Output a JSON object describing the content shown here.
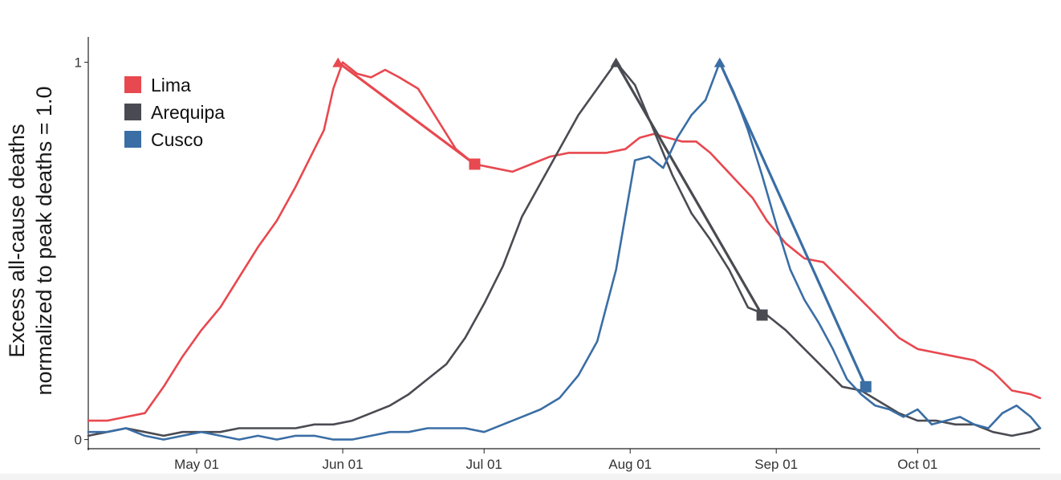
{
  "chart_data": {
    "type": "line",
    "ylabel_lines": [
      "Excess all-cause deaths",
      "normalized to peak deaths = 1.0"
    ],
    "xlabel": "",
    "x_start": "2020-04-08",
    "x_end": "2020-10-27",
    "xticks": [
      {
        "date": "2020-05-01",
        "label": "May 01"
      },
      {
        "date": "2020-06-01",
        "label": "Jun 01"
      },
      {
        "date": "2020-07-01",
        "label": "Jul 01"
      },
      {
        "date": "2020-08-01",
        "label": "Aug 01"
      },
      {
        "date": "2020-09-01",
        "label": "Sep 01"
      },
      {
        "date": "2020-10-01",
        "label": "Oct 01"
      }
    ],
    "yticks": [
      {
        "value": 0,
        "label": "0"
      },
      {
        "value": 1,
        "label": "1"
      }
    ],
    "ylim": [
      -0.02,
      1.08
    ],
    "grid": false,
    "legend": {
      "position": "top-left",
      "entries": [
        "Lima",
        "Arequipa",
        "Cusco"
      ]
    },
    "series": [
      {
        "name": "Lima",
        "color": "#e8484f",
        "points": [
          [
            "2020-04-08",
            0.05
          ],
          [
            "2020-04-12",
            0.05
          ],
          [
            "2020-04-16",
            0.06
          ],
          [
            "2020-04-20",
            0.07
          ],
          [
            "2020-04-24",
            0.14
          ],
          [
            "2020-04-28",
            0.22
          ],
          [
            "2020-05-02",
            0.29
          ],
          [
            "2020-05-06",
            0.35
          ],
          [
            "2020-05-10",
            0.43
          ],
          [
            "2020-05-14",
            0.51
          ],
          [
            "2020-05-18",
            0.58
          ],
          [
            "2020-05-22",
            0.67
          ],
          [
            "2020-05-26",
            0.77
          ],
          [
            "2020-05-28",
            0.82
          ],
          [
            "2020-05-30",
            0.93
          ],
          [
            "2020-06-01",
            1.0
          ],
          [
            "2020-06-04",
            0.97
          ],
          [
            "2020-06-07",
            0.96
          ],
          [
            "2020-06-10",
            0.98
          ],
          [
            "2020-06-13",
            0.96
          ],
          [
            "2020-06-17",
            0.93
          ],
          [
            "2020-06-21",
            0.85
          ],
          [
            "2020-06-25",
            0.77
          ],
          [
            "2020-06-29",
            0.73
          ],
          [
            "2020-07-03",
            0.72
          ],
          [
            "2020-07-07",
            0.71
          ],
          [
            "2020-07-11",
            0.73
          ],
          [
            "2020-07-15",
            0.75
          ],
          [
            "2020-07-19",
            0.76
          ],
          [
            "2020-07-23",
            0.76
          ],
          [
            "2020-07-27",
            0.76
          ],
          [
            "2020-07-31",
            0.77
          ],
          [
            "2020-08-03",
            0.8
          ],
          [
            "2020-08-06",
            0.81
          ],
          [
            "2020-08-09",
            0.8
          ],
          [
            "2020-08-12",
            0.79
          ],
          [
            "2020-08-15",
            0.79
          ],
          [
            "2020-08-18",
            0.76
          ],
          [
            "2020-08-21",
            0.72
          ],
          [
            "2020-08-24",
            0.68
          ],
          [
            "2020-08-27",
            0.64
          ],
          [
            "2020-08-30",
            0.58
          ],
          [
            "2020-09-03",
            0.52
          ],
          [
            "2020-09-07",
            0.48
          ],
          [
            "2020-09-11",
            0.47
          ],
          [
            "2020-09-15",
            0.42
          ],
          [
            "2020-09-19",
            0.37
          ],
          [
            "2020-09-23",
            0.32
          ],
          [
            "2020-09-27",
            0.27
          ],
          [
            "2020-10-01",
            0.24
          ],
          [
            "2020-10-05",
            0.23
          ],
          [
            "2020-10-09",
            0.22
          ],
          [
            "2020-10-13",
            0.21
          ],
          [
            "2020-10-17",
            0.18
          ],
          [
            "2020-10-21",
            0.13
          ],
          [
            "2020-10-25",
            0.12
          ],
          [
            "2020-10-27",
            0.11
          ]
        ],
        "fit": [
          [
            "2020-05-31",
            1.0
          ],
          [
            "2020-06-29",
            0.73
          ]
        ]
      },
      {
        "name": "Arequipa",
        "color": "#4a4b52",
        "points": [
          [
            "2020-04-08",
            0.01
          ],
          [
            "2020-04-12",
            0.02
          ],
          [
            "2020-04-16",
            0.03
          ],
          [
            "2020-04-20",
            0.02
          ],
          [
            "2020-04-24",
            0.01
          ],
          [
            "2020-04-28",
            0.02
          ],
          [
            "2020-05-02",
            0.02
          ],
          [
            "2020-05-06",
            0.02
          ],
          [
            "2020-05-10",
            0.03
          ],
          [
            "2020-05-14",
            0.03
          ],
          [
            "2020-05-18",
            0.03
          ],
          [
            "2020-05-22",
            0.03
          ],
          [
            "2020-05-26",
            0.04
          ],
          [
            "2020-05-30",
            0.04
          ],
          [
            "2020-06-03",
            0.05
          ],
          [
            "2020-06-07",
            0.07
          ],
          [
            "2020-06-11",
            0.09
          ],
          [
            "2020-06-15",
            0.12
          ],
          [
            "2020-06-19",
            0.16
          ],
          [
            "2020-06-23",
            0.2
          ],
          [
            "2020-06-27",
            0.27
          ],
          [
            "2020-07-01",
            0.36
          ],
          [
            "2020-07-05",
            0.46
          ],
          [
            "2020-07-09",
            0.59
          ],
          [
            "2020-07-13",
            0.68
          ],
          [
            "2020-07-17",
            0.77
          ],
          [
            "2020-07-21",
            0.86
          ],
          [
            "2020-07-25",
            0.93
          ],
          [
            "2020-07-29",
            1.0
          ],
          [
            "2020-08-02",
            0.94
          ],
          [
            "2020-08-06",
            0.82
          ],
          [
            "2020-08-10",
            0.7
          ],
          [
            "2020-08-14",
            0.6
          ],
          [
            "2020-08-18",
            0.53
          ],
          [
            "2020-08-22",
            0.45
          ],
          [
            "2020-08-26",
            0.35
          ],
          [
            "2020-08-30",
            0.33
          ],
          [
            "2020-09-03",
            0.29
          ],
          [
            "2020-09-07",
            0.24
          ],
          [
            "2020-09-11",
            0.19
          ],
          [
            "2020-09-15",
            0.14
          ],
          [
            "2020-09-19",
            0.13
          ],
          [
            "2020-09-23",
            0.1
          ],
          [
            "2020-09-27",
            0.07
          ],
          [
            "2020-10-01",
            0.05
          ],
          [
            "2020-10-05",
            0.05
          ],
          [
            "2020-10-09",
            0.04
          ],
          [
            "2020-10-13",
            0.04
          ],
          [
            "2020-10-17",
            0.02
          ],
          [
            "2020-10-21",
            0.01
          ],
          [
            "2020-10-25",
            0.02
          ],
          [
            "2020-10-27",
            0.03
          ]
        ],
        "fit": [
          [
            "2020-07-29",
            1.0
          ],
          [
            "2020-08-29",
            0.33
          ]
        ]
      },
      {
        "name": "Cusco",
        "color": "#3a6ea5",
        "points": [
          [
            "2020-04-08",
            0.02
          ],
          [
            "2020-04-12",
            0.02
          ],
          [
            "2020-04-16",
            0.03
          ],
          [
            "2020-04-20",
            0.01
          ],
          [
            "2020-04-24",
            0.0
          ],
          [
            "2020-04-28",
            0.01
          ],
          [
            "2020-05-02",
            0.02
          ],
          [
            "2020-05-06",
            0.01
          ],
          [
            "2020-05-10",
            0.0
          ],
          [
            "2020-05-14",
            0.01
          ],
          [
            "2020-05-18",
            0.0
          ],
          [
            "2020-05-22",
            0.01
          ],
          [
            "2020-05-26",
            0.01
          ],
          [
            "2020-05-30",
            0.0
          ],
          [
            "2020-06-03",
            0.0
          ],
          [
            "2020-06-07",
            0.01
          ],
          [
            "2020-06-11",
            0.02
          ],
          [
            "2020-06-15",
            0.02
          ],
          [
            "2020-06-19",
            0.03
          ],
          [
            "2020-06-23",
            0.03
          ],
          [
            "2020-06-27",
            0.03
          ],
          [
            "2020-07-01",
            0.02
          ],
          [
            "2020-07-05",
            0.04
          ],
          [
            "2020-07-09",
            0.06
          ],
          [
            "2020-07-13",
            0.08
          ],
          [
            "2020-07-17",
            0.11
          ],
          [
            "2020-07-21",
            0.17
          ],
          [
            "2020-07-25",
            0.26
          ],
          [
            "2020-07-29",
            0.45
          ],
          [
            "2020-08-02",
            0.74
          ],
          [
            "2020-08-05",
            0.75
          ],
          [
            "2020-08-08",
            0.72
          ],
          [
            "2020-08-11",
            0.8
          ],
          [
            "2020-08-14",
            0.86
          ],
          [
            "2020-08-17",
            0.9
          ],
          [
            "2020-08-20",
            1.0
          ],
          [
            "2020-08-23",
            0.92
          ],
          [
            "2020-08-26",
            0.82
          ],
          [
            "2020-08-29",
            0.7
          ],
          [
            "2020-09-01",
            0.57
          ],
          [
            "2020-09-04",
            0.45
          ],
          [
            "2020-09-07",
            0.37
          ],
          [
            "2020-09-10",
            0.31
          ],
          [
            "2020-09-13",
            0.24
          ],
          [
            "2020-09-16",
            0.16
          ],
          [
            "2020-09-19",
            0.12
          ],
          [
            "2020-09-22",
            0.09
          ],
          [
            "2020-09-25",
            0.08
          ],
          [
            "2020-09-28",
            0.06
          ],
          [
            "2020-10-01",
            0.08
          ],
          [
            "2020-10-04",
            0.04
          ],
          [
            "2020-10-07",
            0.05
          ],
          [
            "2020-10-10",
            0.06
          ],
          [
            "2020-10-13",
            0.04
          ],
          [
            "2020-10-16",
            0.03
          ],
          [
            "2020-10-19",
            0.07
          ],
          [
            "2020-10-22",
            0.09
          ],
          [
            "2020-10-25",
            0.06
          ],
          [
            "2020-10-27",
            0.03
          ]
        ],
        "fit": [
          [
            "2020-08-20",
            1.0
          ],
          [
            "2020-09-20",
            0.14
          ]
        ]
      }
    ]
  }
}
